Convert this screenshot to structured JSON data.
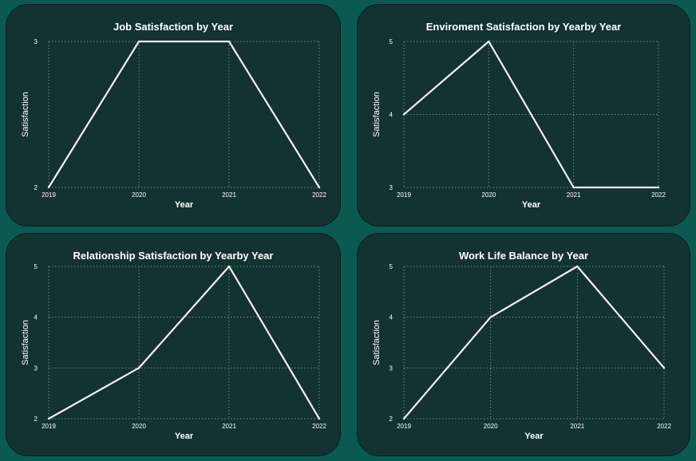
{
  "colors": {
    "page_background": "#0b5a52",
    "card_background": "#133232",
    "line": "#f2f2f2",
    "grid": "#6f8f85",
    "text": "#ffffff"
  },
  "chart_data": [
    {
      "type": "line",
      "title": "Job Satisfaction by Year",
      "xlabel": "Year",
      "ylabel": "Satisfaction",
      "x": [
        "2019",
        "2020",
        "2021",
        "2022"
      ],
      "values": [
        2,
        3,
        3,
        2
      ],
      "ylim": [
        2,
        3
      ],
      "yticks": [
        "2",
        "3"
      ],
      "grid": true,
      "legend": "none"
    },
    {
      "type": "line",
      "title": "Enviroment Satisfaction by Yearby Year",
      "xlabel": "Year",
      "ylabel": "Satisfaction",
      "x": [
        "2019",
        "2020",
        "2021",
        "2022"
      ],
      "values": [
        4,
        5,
        3,
        3
      ],
      "ylim": [
        3,
        5
      ],
      "yticks": [
        "3",
        "4",
        "5"
      ],
      "grid": true,
      "legend": "none"
    },
    {
      "type": "line",
      "title": "Relationship Satisfaction by Yearby Year",
      "xlabel": "Year",
      "ylabel": "Satisfaction",
      "x": [
        "2019",
        "2020",
        "2021",
        "2022"
      ],
      "values": [
        2,
        3,
        5,
        2
      ],
      "ylim": [
        2,
        5
      ],
      "yticks": [
        "2",
        "3",
        "4",
        "5"
      ],
      "grid": true,
      "legend": "none"
    },
    {
      "type": "line",
      "title": "Work Life Balance by Year",
      "xlabel": "Year",
      "ylabel": "Satisfaction",
      "x": [
        "2019",
        "2020",
        "2021",
        "2022"
      ],
      "values": [
        2,
        4,
        5,
        3
      ],
      "ylim": [
        2,
        5
      ],
      "yticks": [
        "2",
        "3",
        "4",
        "5"
      ],
      "grid": true,
      "legend": "none"
    }
  ]
}
